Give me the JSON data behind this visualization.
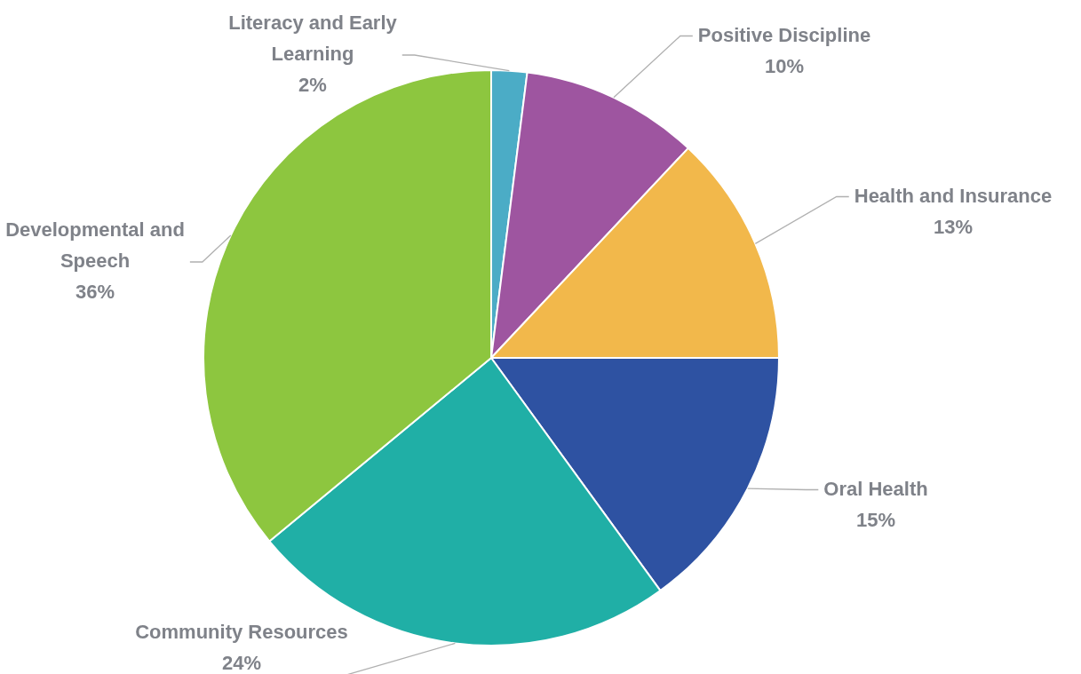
{
  "chart_data": {
    "type": "pie",
    "categories": [
      "Literacy and Early Learning",
      "Positive Discipline",
      "Health and Insurance",
      "Oral Health",
      "Community Resources",
      "Developmental and Speech"
    ],
    "values": [
      2,
      10,
      13,
      15,
      24,
      36
    ],
    "colors": [
      "#4bacc6",
      "#9e55a0",
      "#f2b84b",
      "#2e52a2",
      "#20afa6",
      "#8dc63f"
    ],
    "value_labels": [
      "2%",
      "10%",
      "13%",
      "15%",
      "24%",
      "36%"
    ]
  }
}
